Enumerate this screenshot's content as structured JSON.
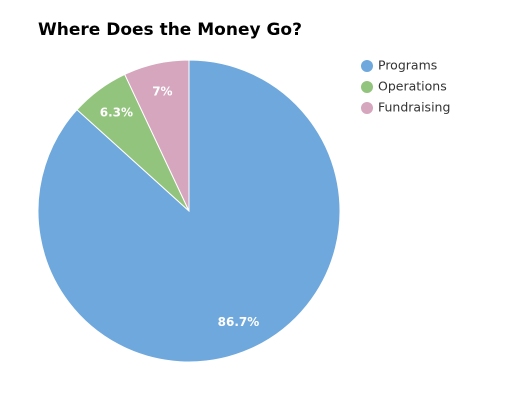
{
  "chart_data": {
    "type": "pie",
    "title": "Where Does the Money Go?",
    "categories": [
      "Programs",
      "Operations",
      "Fundraising"
    ],
    "values": [
      86.7,
      6.3,
      7
    ],
    "value_labels": [
      "86.7%",
      "6.3%",
      "7%"
    ],
    "colors": [
      "#6fa8dc",
      "#93c47d",
      "#d5a6bd"
    ],
    "legend": "top-right"
  }
}
